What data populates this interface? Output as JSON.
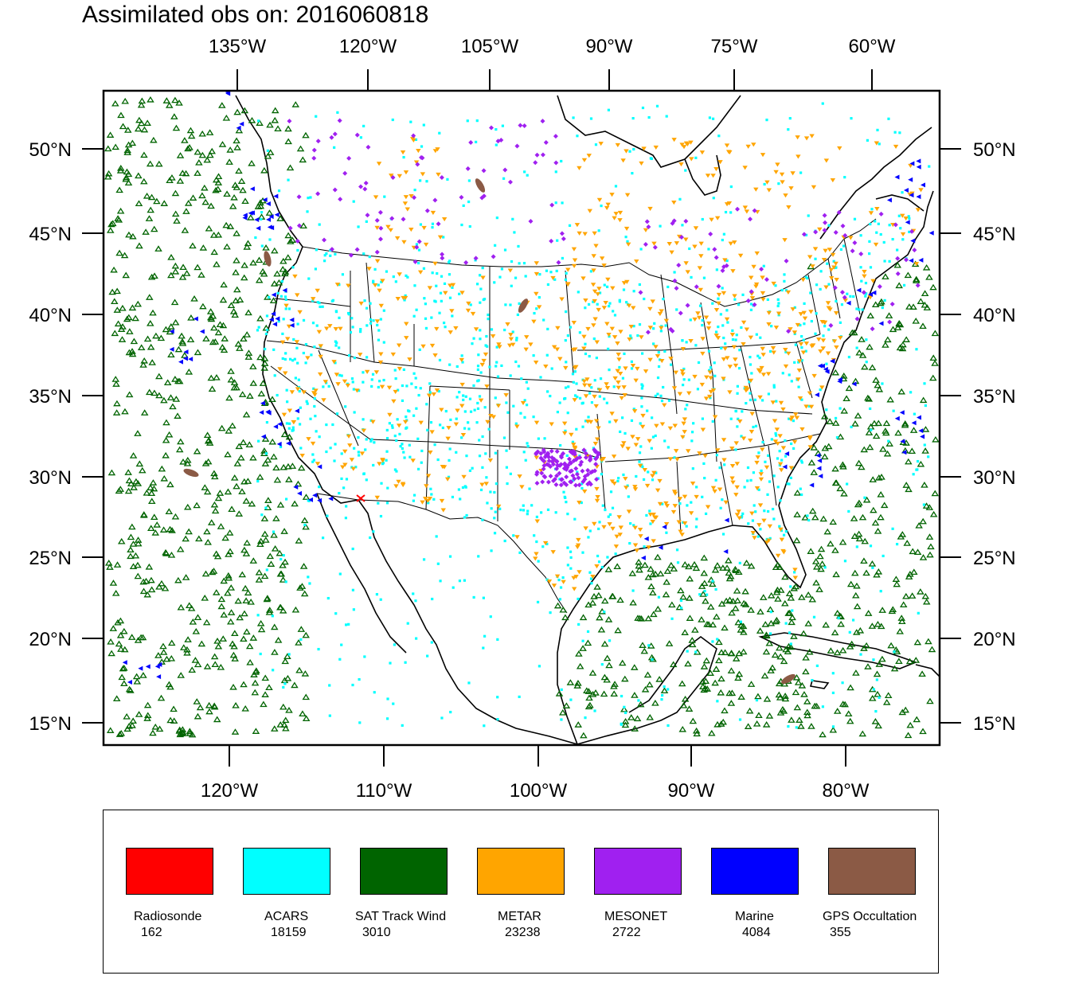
{
  "title": "Assimilated obs on: 2016060818",
  "axes": {
    "top": [
      "135°W",
      "120°W",
      "105°W",
      "90°W",
      "75°W",
      "60°W"
    ],
    "bottom": [
      "120°W",
      "110°W",
      "100°W",
      "90°W",
      "80°W"
    ],
    "lat": [
      "50°N",
      "45°N",
      "40°N",
      "35°N",
      "30°N",
      "25°N",
      "20°N",
      "15°N"
    ]
  },
  "legend": [
    {
      "name": "Radiosonde",
      "count": "162",
      "color": "#ff0000",
      "marker": "x-cross"
    },
    {
      "name": "ACARS",
      "count": "18159",
      "color": "#00ffff",
      "marker": "square-dot"
    },
    {
      "name": "SAT Track Wind",
      "count": "3010",
      "color": "#006400",
      "marker": "triangle-up"
    },
    {
      "name": "METAR",
      "count": "23238",
      "color": "#ffa500",
      "marker": "triangle-down"
    },
    {
      "name": "MESONET",
      "count": "2722",
      "color": "#a020f0",
      "marker": "diamond"
    },
    {
      "name": "Marine",
      "count": "4084",
      "color": "#0000ff",
      "marker": "triangle-left"
    },
    {
      "name": "GPS Occultation",
      "count": "355",
      "color": "#8b5a45",
      "marker": "track"
    }
  ]
}
